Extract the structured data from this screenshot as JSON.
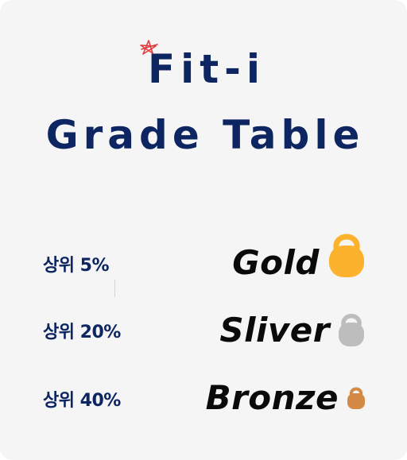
{
  "header": {
    "title_line1": "Fit-i",
    "title_line2": "Grade Table",
    "accent_color": "#e23b3b",
    "title_color": "#0d2560"
  },
  "grades": [
    {
      "rank": "상위 5%",
      "name": "Gold",
      "icon": "kettlebell-icon",
      "color": "#fdb22d"
    },
    {
      "rank": "상위 20%",
      "name": "Sliver",
      "icon": "kettlebell-icon",
      "color": "#bdbdbd"
    },
    {
      "rank": "상위 40%",
      "name": "Bronze",
      "icon": "kettlebell-icon",
      "color": "#d48a45"
    }
  ]
}
